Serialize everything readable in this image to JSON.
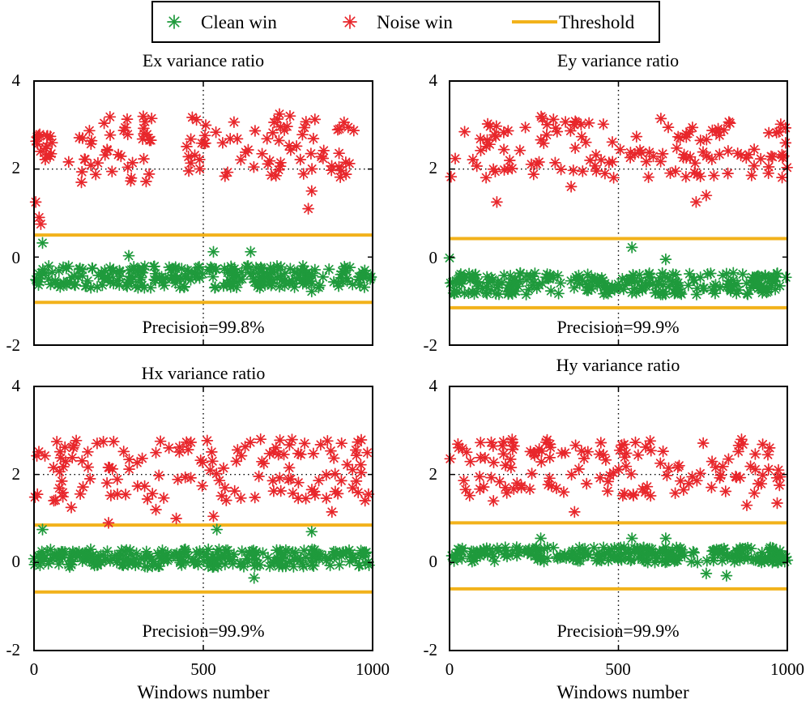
{
  "legend": {
    "items": [
      {
        "label": "Clean win",
        "marker": "asterisk",
        "color": "#1f9a3c"
      },
      {
        "label": "Noise win",
        "marker": "asterisk",
        "color": "#e8262b"
      },
      {
        "label": "Threshold",
        "marker": "line",
        "color": "#f2b21b"
      }
    ]
  },
  "colors": {
    "clean": "#1f9a3c",
    "noise": "#e8262b",
    "threshold": "#f2b21b",
    "axis": "#000000"
  },
  "chart_data": [
    {
      "type": "scatter",
      "title": "Ex variance ratio",
      "xlabel": "",
      "ylabel": "",
      "xlim": [
        0,
        1000
      ],
      "ylim": [
        -2,
        4
      ],
      "yticks": [
        "4",
        "2",
        "0",
        "-2"
      ],
      "xticks": [],
      "grid": "dotted at x=500 and y=2",
      "thresholds": [
        0.5,
        -1.03
      ],
      "annotation": "Precision=99.8%",
      "clean": {
        "y_range": [
          -0.7,
          -0.2
        ],
        "outliers": [
          [
            25,
            0.32
          ],
          [
            280,
            0.03
          ],
          [
            530,
            0.12
          ],
          [
            640,
            0.12
          ],
          [
            820,
            -0.78
          ]
        ]
      },
      "noise": {
        "segments": [
          [
            0,
            60,
            2.2,
            2.85
          ],
          [
            100,
            350,
            1.7,
            3.2
          ],
          [
            450,
            960,
            1.8,
            3.3
          ]
        ],
        "low_points": [
          [
            5,
            1.25
          ],
          [
            15,
            0.9
          ],
          [
            20,
            0.75
          ],
          [
            140,
            1.7
          ],
          [
            810,
            1.1
          ],
          [
            820,
            1.5
          ]
        ]
      }
    },
    {
      "type": "scatter",
      "title": "Ey variance ratio",
      "xlabel": "",
      "ylabel": "",
      "xlim": [
        0,
        1000
      ],
      "ylim": [
        -2,
        4
      ],
      "yticks": [
        "4",
        "2",
        "0",
        "-2"
      ],
      "xticks": [],
      "grid": "dotted at x=500 and y=2",
      "thresholds": [
        0.42,
        -1.15
      ],
      "annotation": "Precision=99.9%",
      "clean": {
        "y_range": [
          -0.85,
          -0.35
        ],
        "outliers": [
          [
            0,
            -0.02
          ],
          [
            540,
            0.22
          ],
          [
            640,
            -0.05
          ]
        ]
      },
      "noise": {
        "segments": [
          [
            0,
            1000,
            1.8,
            3.2
          ]
        ],
        "low_points": [
          [
            140,
            1.25
          ],
          [
            360,
            1.6
          ],
          [
            730,
            1.25
          ],
          [
            760,
            1.4
          ]
        ]
      }
    },
    {
      "type": "scatter",
      "title": "Hx variance ratio",
      "xlabel": "Windows number",
      "ylabel": "",
      "xlim": [
        0,
        1000
      ],
      "ylim": [
        -2,
        4
      ],
      "xticks": [
        "0",
        "500",
        "1000"
      ],
      "yticks": [
        "4",
        "2",
        "0",
        "-2"
      ],
      "grid": "dotted at x=500 and y=2",
      "thresholds": [
        0.85,
        -0.67
      ],
      "annotation": "Precision=99.9%",
      "clean": {
        "y_range": [
          -0.1,
          0.3
        ],
        "outliers": [
          [
            25,
            0.75
          ],
          [
            540,
            0.75
          ],
          [
            820,
            0.7
          ],
          [
            650,
            -0.35
          ]
        ]
      },
      "noise": {
        "segments": [
          [
            0,
            1000,
            1.4,
            2.8
          ]
        ],
        "low_points": [
          [
            10,
            1.55
          ],
          [
            110,
            1.25
          ],
          [
            220,
            0.9
          ],
          [
            360,
            1.2
          ],
          [
            420,
            1.0
          ],
          [
            530,
            1.05
          ],
          [
            880,
            1.15
          ]
        ]
      }
    },
    {
      "type": "scatter",
      "title": "Hy variance ratio",
      "xlabel": "Windows number",
      "ylabel": "",
      "xlim": [
        0,
        1000
      ],
      "ylim": [
        -2,
        4
      ],
      "xticks": [
        "0",
        "500",
        "1000"
      ],
      "yticks": [
        "4",
        "2",
        "0",
        "-2"
      ],
      "grid": "dotted at x=500 and y=2",
      "thresholds": [
        0.9,
        -0.6
      ],
      "annotation": "Precision=99.9%",
      "clean": {
        "y_range": [
          0.0,
          0.35
        ],
        "outliers": [
          [
            270,
            0.55
          ],
          [
            540,
            0.55
          ],
          [
            640,
            0.55
          ],
          [
            760,
            -0.25
          ],
          [
            820,
            -0.3
          ]
        ]
      },
      "noise": {
        "segments": [
          [
            0,
            1000,
            1.5,
            2.8
          ]
        ],
        "low_points": [
          [
            130,
            1.4
          ],
          [
            370,
            1.15
          ],
          [
            880,
            1.3
          ],
          [
            970,
            1.35
          ]
        ]
      }
    }
  ]
}
